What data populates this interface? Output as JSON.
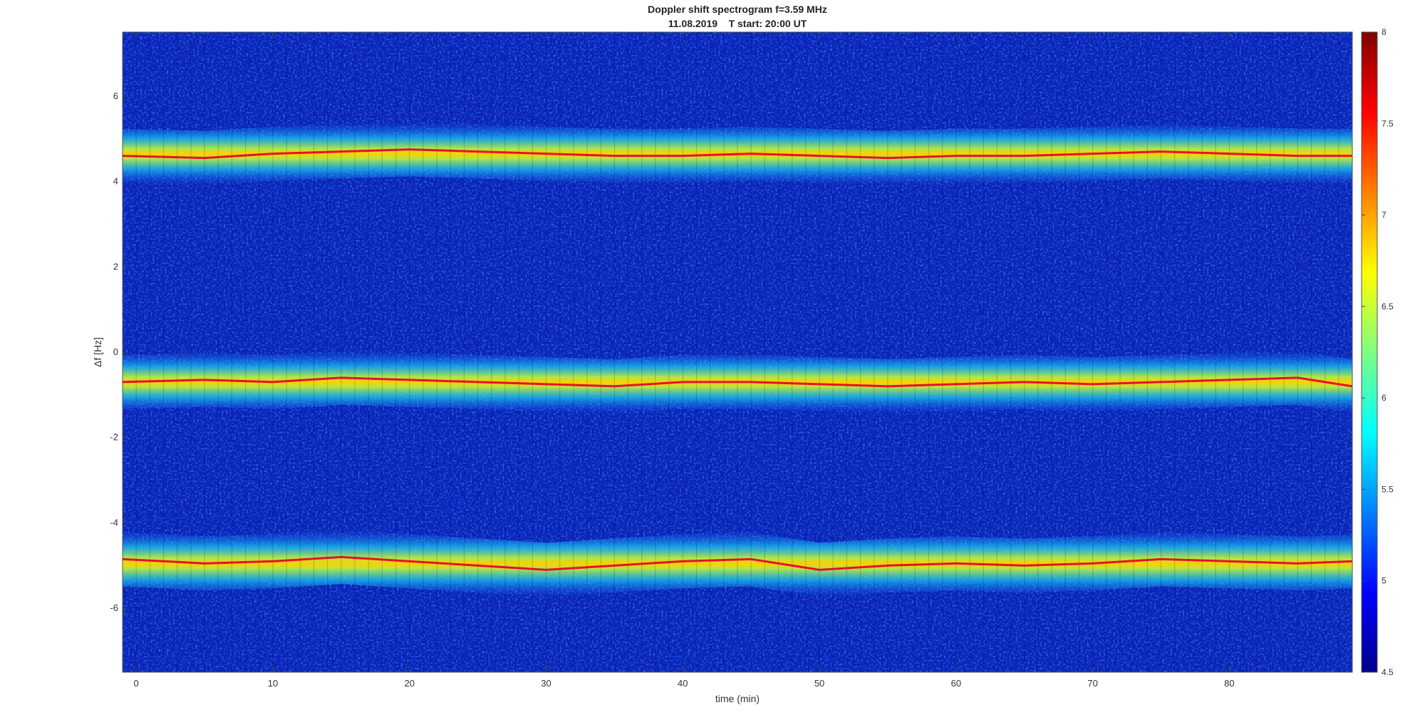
{
  "chart_data": {
    "type": "heatmap",
    "title": "Doppler shift spectrogram f=3.59 MHz",
    "subtitle": "11.08.2019    T start: 20:00 UT",
    "xlabel": "time (min)",
    "ylabel": "Δf [Hz]",
    "xlim": [
      -1,
      89
    ],
    "ylim": [
      -7.5,
      7.5
    ],
    "x_ticks": [
      0,
      10,
      20,
      30,
      40,
      50,
      60,
      70,
      80
    ],
    "y_ticks": [
      -6,
      -4,
      -2,
      0,
      2,
      4,
      6
    ],
    "colorbar": {
      "colormap": "jet",
      "range": [
        4.5,
        8
      ],
      "ticks": [
        4.5,
        5,
        5.5,
        6,
        6.5,
        7,
        7.5,
        8
      ]
    },
    "series": [
      {
        "x": [
          -1,
          5,
          10,
          15,
          20,
          25,
          30,
          35,
          40,
          45,
          50,
          55,
          60,
          65,
          70,
          75,
          80,
          85,
          89
        ],
        "y": [
          4.6,
          4.55,
          4.65,
          4.7,
          4.75,
          4.7,
          4.65,
          4.6,
          4.6,
          4.65,
          4.6,
          4.55,
          4.6,
          4.6,
          4.65,
          4.7,
          4.65,
          4.6,
          4.6
        ]
      },
      {
        "x": [
          -1,
          5,
          10,
          15,
          20,
          25,
          30,
          35,
          40,
          45,
          50,
          55,
          60,
          65,
          70,
          75,
          80,
          85,
          89
        ],
        "y": [
          -0.7,
          -0.65,
          -0.7,
          -0.6,
          -0.65,
          -0.7,
          -0.75,
          -0.8,
          -0.7,
          -0.7,
          -0.75,
          -0.8,
          -0.75,
          -0.7,
          -0.75,
          -0.7,
          -0.65,
          -0.6,
          -0.8
        ]
      },
      {
        "x": [
          -1,
          5,
          10,
          15,
          20,
          25,
          30,
          35,
          40,
          45,
          50,
          55,
          60,
          65,
          70,
          75,
          80,
          85,
          89
        ],
        "y": [
          -4.85,
          -4.95,
          -4.9,
          -4.8,
          -4.9,
          -5.0,
          -5.1,
          -5.0,
          -4.9,
          -4.85,
          -5.1,
          -5.0,
          -4.95,
          -5.0,
          -4.95,
          -4.85,
          -4.9,
          -4.95,
          -4.9
        ]
      }
    ]
  }
}
